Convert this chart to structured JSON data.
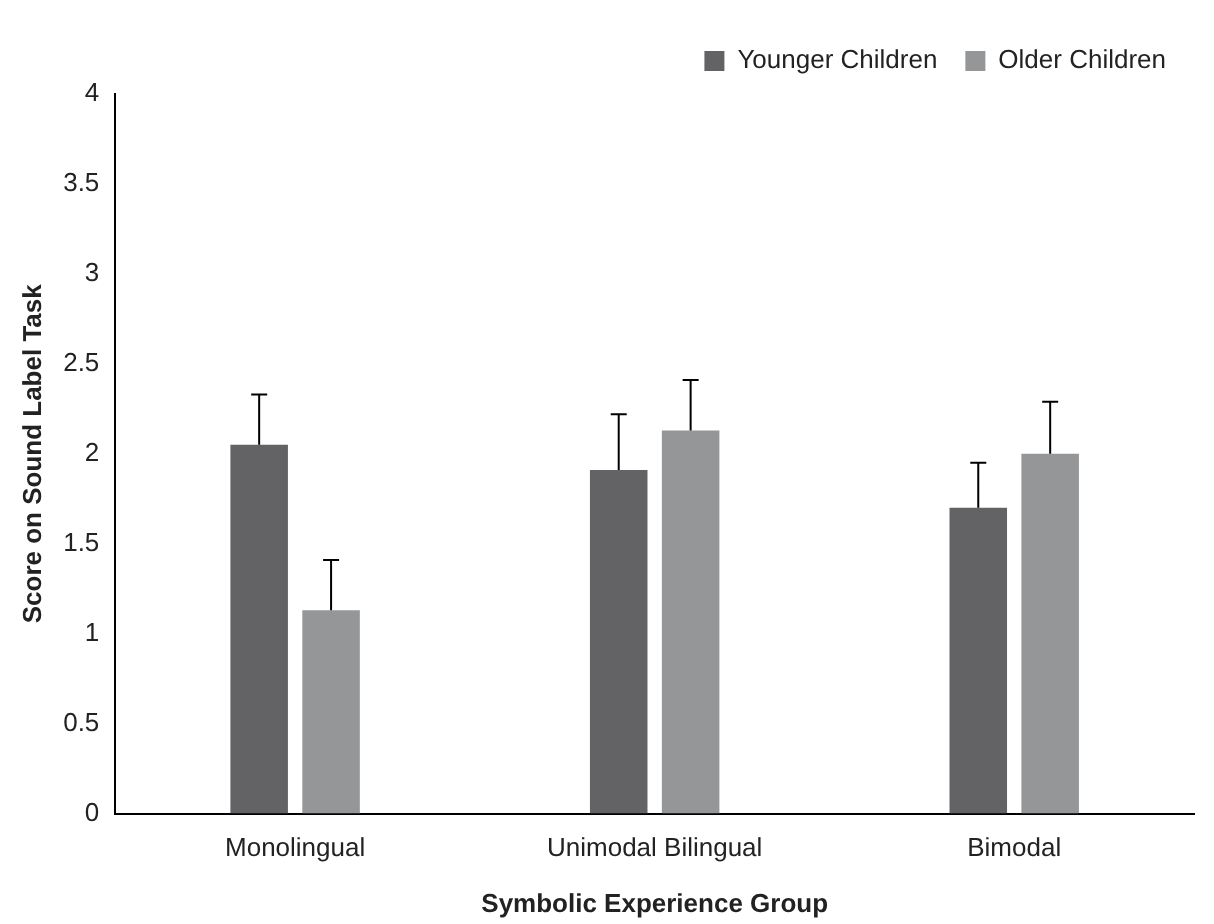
{
  "chart_data": {
    "type": "bar",
    "xlabel": "Symbolic Experience Group",
    "ylabel": "Score on Sound Label Task",
    "categories": [
      "Monolingual",
      "Unimodal Bilingual",
      "Bimodal"
    ],
    "series": [
      {
        "name": "Younger Children",
        "color": "#636365",
        "values": [
          2.05,
          1.91,
          1.7
        ],
        "errors": [
          [
            2.05,
            2.33
          ],
          [
            1.91,
            2.22
          ],
          [
            1.7,
            1.95
          ]
        ]
      },
      {
        "name": "Older Children",
        "color": "#959698",
        "values": [
          1.13,
          2.13,
          2.0
        ],
        "errors": [
          [
            1.13,
            1.41
          ],
          [
            2.13,
            2.41
          ],
          [
            2.0,
            2.29
          ]
        ]
      }
    ],
    "ylim": [
      0,
      4
    ],
    "yticks": [
      0,
      0.5,
      1,
      1.5,
      2,
      2.5,
      3,
      3.5,
      4
    ],
    "grid": false,
    "legend": "top right"
  }
}
